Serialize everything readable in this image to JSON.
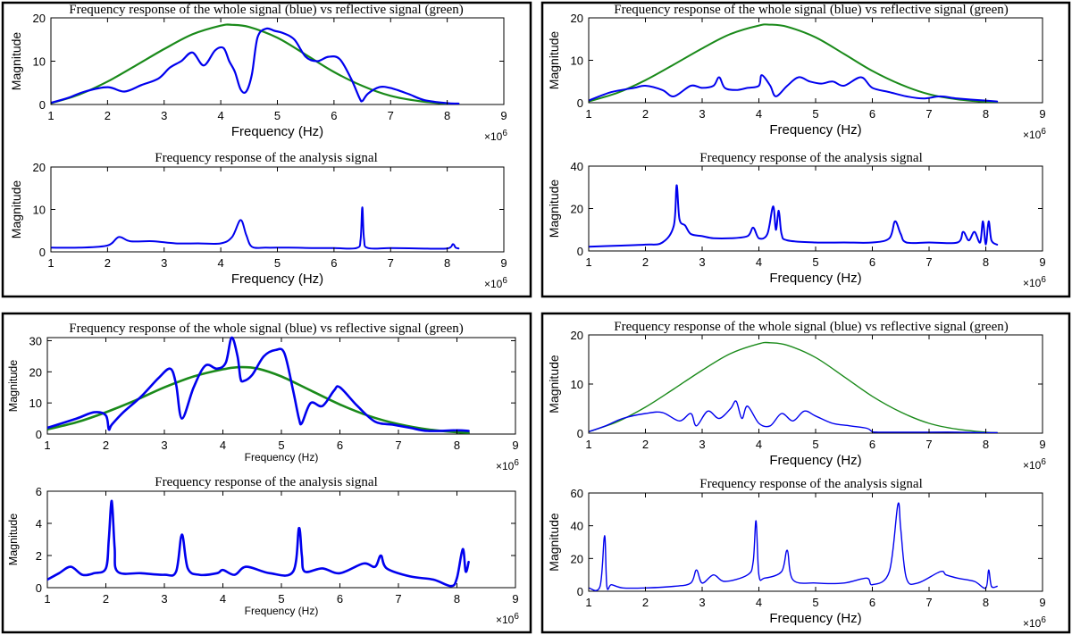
{
  "chart_data": [
    {
      "type": "line",
      "title": "Frequency response of the whole signal (blue) vs reflective signal (green)",
      "xlabel": "Frequency (Hz)",
      "ylabel": "Magnitude",
      "x_multiplier": "×10",
      "x_exponent": "6",
      "xlim": [
        1,
        9
      ],
      "ylim": [
        0,
        20
      ],
      "xticks": [
        1,
        2,
        3,
        4,
        5,
        6,
        7,
        8,
        9
      ],
      "yticks": [
        0,
        10,
        20
      ],
      "series": [
        {
          "name": "reflective signal",
          "color": "#1a8a1a",
          "x": [
            1.0,
            1.5,
            2.0,
            2.5,
            3.0,
            3.5,
            4.0,
            4.2,
            4.5,
            5.0,
            5.5,
            6.0,
            6.5,
            7.0,
            7.5,
            8.0,
            8.2
          ],
          "y": [
            0.3,
            2.3,
            5.3,
            9.0,
            12.8,
            16.2,
            18.2,
            18.4,
            17.9,
            15.4,
            11.5,
            7.5,
            4.3,
            2.0,
            0.8,
            0.2,
            0.1
          ]
        },
        {
          "name": "whole signal",
          "color": "#0000ee",
          "x": [
            1.0,
            1.3,
            1.6,
            2.0,
            2.3,
            2.6,
            2.9,
            3.1,
            3.3,
            3.5,
            3.7,
            3.9,
            4.05,
            4.15,
            4.25,
            4.35,
            4.45,
            4.55,
            4.65,
            4.8,
            4.95,
            5.1,
            5.3,
            5.5,
            5.7,
            5.9,
            6.1,
            6.3,
            6.45,
            6.5,
            6.6,
            6.8,
            7.0,
            7.3,
            7.6,
            8.0,
            8.2
          ],
          "y": [
            0.4,
            1.5,
            3.0,
            4.0,
            3.0,
            4.5,
            6.0,
            8.5,
            10.0,
            12.0,
            9.0,
            12.5,
            13.0,
            10.0,
            7.5,
            3.5,
            3.0,
            7.0,
            15.5,
            17.5,
            17.0,
            16.5,
            15.0,
            11.0,
            10.0,
            11.0,
            10.5,
            6.0,
            1.5,
            0.8,
            2.5,
            4.0,
            3.8,
            2.5,
            1.0,
            0.3,
            0.2
          ]
        }
      ]
    },
    {
      "type": "line",
      "title": "Frequency response of the analysis signal",
      "xlabel": "Frequency (Hz)",
      "ylabel": "Magnitude",
      "x_multiplier": "×10",
      "x_exponent": "6",
      "xlim": [
        1,
        9
      ],
      "ylim": [
        0,
        20
      ],
      "xticks": [
        1,
        2,
        3,
        4,
        5,
        6,
        7,
        8,
        9
      ],
      "yticks": [
        0,
        10,
        20
      ],
      "series": [
        {
          "name": "analysis signal",
          "color": "#0000ee",
          "x": [
            1.0,
            1.5,
            2.0,
            2.2,
            2.4,
            2.8,
            3.2,
            3.6,
            4.0,
            4.2,
            4.35,
            4.45,
            4.55,
            4.8,
            5.2,
            5.6,
            6.0,
            6.4,
            6.47,
            6.5,
            6.53,
            6.6,
            7.0,
            7.5,
            8.0,
            8.1,
            8.15,
            8.2
          ],
          "y": [
            1.0,
            1.0,
            1.5,
            3.5,
            2.5,
            2.5,
            2.0,
            2.0,
            2.0,
            3.5,
            7.5,
            4.0,
            1.2,
            1.0,
            1.0,
            0.9,
            0.9,
            0.9,
            3.0,
            10.5,
            3.0,
            0.9,
            0.9,
            0.8,
            0.8,
            1.8,
            1.0,
            0.8
          ]
        }
      ]
    },
    {
      "type": "line",
      "title": "Frequency response of the whole signal (blue) vs reflective signal (green)",
      "xlabel": "Frequency (Hz)",
      "ylabel": "Magnitude",
      "x_multiplier": "×10",
      "x_exponent": "6",
      "xlim": [
        1,
        9
      ],
      "ylim": [
        0,
        20
      ],
      "xticks": [
        1,
        2,
        3,
        4,
        5,
        6,
        7,
        8,
        9
      ],
      "yticks": [
        0,
        10,
        20
      ],
      "series": [
        {
          "name": "reflective signal",
          "color": "#1a8a1a",
          "x": [
            1.0,
            1.5,
            2.0,
            2.5,
            3.0,
            3.5,
            4.0,
            4.2,
            4.5,
            5.0,
            5.5,
            6.0,
            6.5,
            7.0,
            7.5,
            8.0,
            8.2
          ],
          "y": [
            0.3,
            2.3,
            5.3,
            9.0,
            12.8,
            16.2,
            18.2,
            18.4,
            17.9,
            15.4,
            11.5,
            7.5,
            4.3,
            2.0,
            0.8,
            0.2,
            0.1
          ]
        },
        {
          "name": "whole signal",
          "color": "#0000ee",
          "x": [
            1.0,
            1.4,
            1.8,
            2.0,
            2.3,
            2.5,
            2.8,
            3.0,
            3.2,
            3.3,
            3.4,
            3.6,
            3.8,
            4.0,
            4.05,
            4.2,
            4.3,
            4.5,
            4.7,
            4.9,
            5.1,
            5.3,
            5.5,
            5.8,
            6.0,
            6.3,
            6.6,
            6.9,
            7.2,
            7.5,
            8.0,
            8.2
          ],
          "y": [
            0.5,
            2.5,
            3.5,
            4.0,
            3.0,
            1.5,
            4.0,
            3.5,
            4.0,
            6.0,
            3.5,
            3.0,
            3.5,
            4.0,
            6.5,
            4.0,
            1.5,
            4.0,
            6.0,
            5.0,
            4.5,
            5.0,
            4.0,
            6.0,
            3.5,
            2.5,
            1.5,
            1.0,
            1.5,
            1.0,
            0.5,
            0.3
          ]
        }
      ]
    },
    {
      "type": "line",
      "title": "Frequency response of the analysis signal",
      "xlabel": "Frequency (Hz)",
      "ylabel": "Magnitude",
      "x_multiplier": "×10",
      "x_exponent": "6",
      "xlim": [
        1,
        9
      ],
      "ylim": [
        0,
        40
      ],
      "xticks": [
        1,
        2,
        3,
        4,
        5,
        6,
        7,
        8,
        9
      ],
      "yticks": [
        0,
        20,
        40
      ],
      "series": [
        {
          "name": "analysis signal",
          "color": "#0000ee",
          "x": [
            1.0,
            1.5,
            2.0,
            2.3,
            2.5,
            2.55,
            2.6,
            2.7,
            2.8,
            3.0,
            3.2,
            3.5,
            3.8,
            3.9,
            4.0,
            4.15,
            4.25,
            4.3,
            4.35,
            4.4,
            4.5,
            5.0,
            5.5,
            6.0,
            6.3,
            6.4,
            6.5,
            6.6,
            7.0,
            7.5,
            7.6,
            7.7,
            7.8,
            7.9,
            7.95,
            8.0,
            8.05,
            8.1,
            8.2
          ],
          "y": [
            2.0,
            2.5,
            3.0,
            4.0,
            12.0,
            31.0,
            15.0,
            12.0,
            8.0,
            7.0,
            6.0,
            6.0,
            7.0,
            11.0,
            6.0,
            8.0,
            21.0,
            10.0,
            19.0,
            8.0,
            5.0,
            4.0,
            4.0,
            4.0,
            6.0,
            14.0,
            8.0,
            4.0,
            4.0,
            4.0,
            9.0,
            5.0,
            9.0,
            4.0,
            14.0,
            3.0,
            14.0,
            5.0,
            3.0
          ]
        }
      ]
    },
    {
      "type": "line",
      "title": "Frequency response of the whole signal (blue) vs reflective signal (green)",
      "xlabel": "Frequency (Hz)",
      "ylabel": "Magnitude",
      "x_multiplier": "×10",
      "x_exponent": "6",
      "xlim": [
        1,
        9
      ],
      "ylim": [
        0,
        31
      ],
      "xticks": [
        1,
        2,
        3,
        4,
        5,
        6,
        7,
        8,
        9
      ],
      "yticks": [
        0,
        10,
        20,
        30
      ],
      "series": [
        {
          "name": "reflective signal",
          "color": "#1a8a1a",
          "x": [
            1.0,
            1.5,
            2.0,
            2.5,
            3.0,
            3.5,
            4.0,
            4.3,
            4.6,
            5.0,
            5.5,
            6.0,
            6.5,
            7.0,
            7.5,
            8.0,
            8.2
          ],
          "y": [
            1.5,
            3.8,
            7.0,
            10.8,
            15.0,
            18.5,
            20.8,
            21.5,
            21.0,
            18.5,
            14.0,
            9.5,
            5.8,
            3.2,
            1.5,
            0.6,
            0.4
          ]
        },
        {
          "name": "whole signal",
          "color": "#0000ee",
          "x": [
            1.0,
            1.5,
            1.8,
            2.0,
            2.05,
            2.1,
            2.3,
            2.6,
            2.9,
            3.1,
            3.2,
            3.3,
            3.5,
            3.7,
            3.9,
            4.05,
            4.15,
            4.25,
            4.3,
            4.35,
            4.5,
            4.7,
            4.9,
            5.05,
            5.2,
            5.3,
            5.35,
            5.5,
            5.7,
            5.9,
            6.0,
            6.3,
            6.6,
            6.9,
            7.2,
            7.5,
            8.0,
            8.2
          ],
          "y": [
            2.0,
            5.0,
            7.0,
            6.0,
            1.5,
            3.0,
            7.0,
            12.0,
            18.0,
            21.0,
            16.0,
            5.0,
            15.0,
            22.0,
            21.0,
            23.0,
            31.0,
            25.0,
            18.0,
            17.0,
            19.0,
            25.0,
            27.0,
            26.0,
            14.0,
            5.0,
            3.5,
            10.0,
            9.0,
            14.0,
            15.0,
            9.0,
            4.0,
            3.0,
            2.0,
            1.0,
            1.2,
            1.0
          ]
        }
      ]
    },
    {
      "type": "line",
      "title": "Frequency response of the analysis signal",
      "xlabel": "Frequency (Hz)",
      "ylabel": "Magnitude",
      "x_multiplier": "×10",
      "x_exponent": "6",
      "xlim": [
        1,
        9
      ],
      "ylim": [
        0,
        6
      ],
      "xticks": [
        1,
        2,
        3,
        4,
        5,
        6,
        7,
        8,
        9
      ],
      "yticks": [
        0,
        2,
        4,
        6
      ],
      "series": [
        {
          "name": "analysis signal",
          "color": "#0000ee",
          "x": [
            1.0,
            1.2,
            1.4,
            1.6,
            1.8,
            2.0,
            2.05,
            2.1,
            2.15,
            2.2,
            2.6,
            3.0,
            3.2,
            3.3,
            3.4,
            3.6,
            3.9,
            4.0,
            4.2,
            4.4,
            4.8,
            5.2,
            5.3,
            5.35,
            5.4,
            5.7,
            6.0,
            6.4,
            6.6,
            6.7,
            6.8,
            7.2,
            7.6,
            7.9,
            8.0,
            8.1,
            8.15,
            8.2
          ],
          "y": [
            0.5,
            0.9,
            1.3,
            0.8,
            0.9,
            1.2,
            3.0,
            5.4,
            2.5,
            1.0,
            0.9,
            0.8,
            1.0,
            3.3,
            1.2,
            0.8,
            0.9,
            1.1,
            0.8,
            1.3,
            0.9,
            1.0,
            3.7,
            2.0,
            1.0,
            1.2,
            0.9,
            1.5,
            1.3,
            2.0,
            1.2,
            0.7,
            0.5,
            0.1,
            0.6,
            2.4,
            1.0,
            1.6
          ]
        }
      ]
    },
    {
      "type": "line",
      "title": "Frequency response of the whole signal (blue) vs reflective signal (green)",
      "xlabel": "Frequency (Hz)",
      "ylabel": "Magnitude",
      "x_multiplier": "×10",
      "x_exponent": "6",
      "xlim": [
        1,
        9
      ],
      "ylim": [
        0,
        20
      ],
      "xticks": [
        1,
        2,
        3,
        4,
        5,
        6,
        7,
        8,
        9
      ],
      "yticks": [
        0,
        10,
        20
      ],
      "series": [
        {
          "name": "reflective signal",
          "color": "#1a8a1a",
          "x": [
            1.0,
            1.5,
            2.0,
            2.5,
            3.0,
            3.5,
            4.0,
            4.2,
            4.5,
            5.0,
            5.5,
            6.0,
            6.5,
            7.0,
            7.5,
            8.0,
            8.2
          ],
          "y": [
            0.3,
            2.3,
            5.3,
            9.0,
            12.8,
            16.2,
            18.2,
            18.4,
            17.9,
            15.4,
            11.5,
            7.5,
            4.3,
            2.0,
            0.8,
            0.2,
            0.1
          ]
        },
        {
          "name": "whole signal",
          "color": "#0000ee",
          "x": [
            1.0,
            1.3,
            1.6,
            2.0,
            2.3,
            2.6,
            2.8,
            2.9,
            3.1,
            3.3,
            3.5,
            3.6,
            3.7,
            3.8,
            4.0,
            4.2,
            4.4,
            4.6,
            4.8,
            5.0,
            5.3,
            5.6,
            5.9,
            6.0,
            6.1,
            6.3,
            6.6,
            7.0,
            7.5,
            8.0,
            8.2
          ],
          "y": [
            0.3,
            1.5,
            3.0,
            4.0,
            4.2,
            2.5,
            4.0,
            1.5,
            4.5,
            3.0,
            5.0,
            6.5,
            3.0,
            5.5,
            2.0,
            1.5,
            4.0,
            2.5,
            4.5,
            3.5,
            2.0,
            1.5,
            1.0,
            0.3,
            0.2,
            0.2,
            0.2,
            0.2,
            0.2,
            0.1,
            0.1
          ]
        }
      ]
    },
    {
      "type": "line",
      "title": "Frequency response of the analysis signal",
      "xlabel": "Frequency (Hz)",
      "ylabel": "Magnitude",
      "x_multiplier": "×10",
      "x_exponent": "6",
      "xlim": [
        1,
        9
      ],
      "ylim": [
        0,
        60
      ],
      "xticks": [
        1,
        2,
        3,
        4,
        5,
        6,
        7,
        8,
        9
      ],
      "yticks": [
        0,
        20,
        40,
        60
      ],
      "series": [
        {
          "name": "analysis signal",
          "color": "#0000ee",
          "x": [
            1.0,
            1.2,
            1.28,
            1.32,
            1.4,
            1.6,
            2.0,
            2.5,
            2.8,
            2.9,
            3.0,
            3.2,
            3.4,
            3.8,
            3.9,
            3.95,
            4.0,
            4.1,
            4.4,
            4.5,
            4.6,
            5.0,
            5.5,
            5.9,
            6.0,
            6.3,
            6.45,
            6.5,
            6.6,
            6.8,
            7.2,
            7.3,
            7.5,
            7.8,
            8.0,
            8.05,
            8.1,
            8.2
          ],
          "y": [
            2.0,
            3.0,
            34.0,
            3.0,
            4.0,
            2.0,
            2.0,
            3.0,
            5.0,
            13.0,
            5.0,
            10.0,
            6.0,
            10.0,
            18.0,
            43.0,
            10.0,
            8.0,
            12.0,
            25.0,
            7.0,
            5.0,
            5.0,
            8.0,
            4.0,
            12.0,
            53.0,
            38.0,
            8.0,
            5.0,
            12.0,
            10.0,
            8.0,
            6.0,
            2.0,
            13.0,
            3.0,
            3.0
          ]
        }
      ]
    }
  ]
}
